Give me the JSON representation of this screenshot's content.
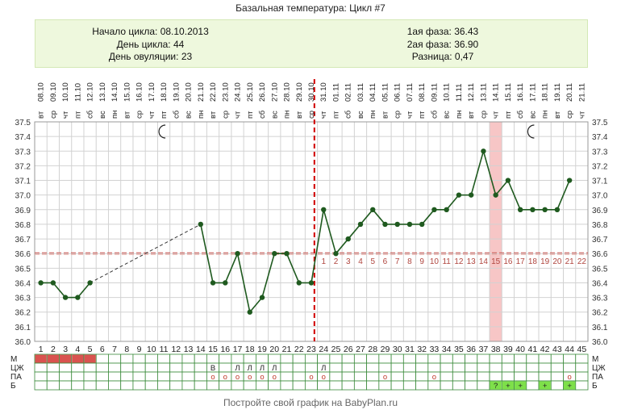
{
  "header": {
    "title": "Базальная температура: Цикл #7"
  },
  "info": {
    "cycle_start_label": "Начало цикла:",
    "cycle_start": "08.10.2013",
    "cycle_day_label": "День цикла:",
    "cycle_day": "44",
    "ovulation_day_label": "День овуляции:",
    "ovulation_day": "23",
    "phase1_label": "1ая фаза:",
    "phase1": "36.43",
    "phase2_label": "2ая фаза:",
    "phase2": "36.90",
    "diff_label": "Разница:",
    "diff": "0,47"
  },
  "footer": {
    "text": "Постройте свой график на BabyPlan.ru"
  },
  "chart_data": {
    "type": "line",
    "title": "Базальная температура: Цикл #7",
    "x": [
      1,
      2,
      3,
      4,
      5,
      6,
      7,
      8,
      9,
      10,
      11,
      12,
      13,
      14,
      15,
      16,
      17,
      18,
      19,
      20,
      21,
      22,
      23,
      24,
      25,
      26,
      27,
      28,
      29,
      30,
      31,
      32,
      33,
      34,
      35,
      36,
      37,
      38,
      39,
      40,
      41,
      42,
      43,
      44,
      45
    ],
    "dates": [
      "08.10",
      "09.10",
      "10.10",
      "11.10",
      "12.10",
      "13.10",
      "14.10",
      "15.10",
      "16.10",
      "17.10",
      "18.10",
      "19.10",
      "20.10",
      "21.10",
      "22.10",
      "23.10",
      "24.10",
      "25.10",
      "26.10",
      "27.10",
      "28.10",
      "29.10",
      "30.10",
      "31.10",
      "01.11",
      "02.11",
      "03.11",
      "04.11",
      "05.11",
      "06.11",
      "07.11",
      "08.11",
      "09.11",
      "10.11",
      "11.11",
      "12.11",
      "13.11",
      "14.11",
      "15.11",
      "16.11",
      "17.11",
      "18.11",
      "19.11",
      "20.11",
      "21.11"
    ],
    "weekdays": [
      "вт",
      "ср",
      "чт",
      "пт",
      "сб",
      "вс",
      "пн",
      "вт",
      "ср",
      "чт",
      "пт",
      "сб",
      "вс",
      "пн",
      "вт",
      "ср",
      "чт",
      "пт",
      "сб",
      "вс",
      "пн",
      "вт",
      "ср",
      "чт",
      "пт",
      "сб",
      "вс",
      "пн",
      "вт",
      "ср",
      "чт",
      "пт",
      "сб",
      "вс",
      "пн",
      "вт",
      "ср",
      "чт",
      "пт",
      "сб",
      "вс",
      "пн",
      "вт",
      "ср",
      "чт"
    ],
    "series": [
      {
        "values": [
          36.4,
          36.4,
          36.3,
          36.3,
          36.4,
          null,
          null,
          null,
          null,
          null,
          null,
          null,
          null,
          36.8,
          36.4,
          36.4,
          36.6,
          36.2,
          36.3,
          36.6,
          36.6,
          36.4,
          36.4,
          36.9,
          36.6,
          36.7,
          36.8,
          36.9,
          36.8,
          36.8,
          36.8,
          36.8,
          36.9,
          36.9,
          37.0,
          37.0,
          37.3,
          37.0,
          37.1,
          36.9,
          36.9,
          36.9,
          36.9,
          37.1,
          null
        ]
      }
    ],
    "ylim": [
      36.0,
      37.5
    ],
    "yticks": [
      "37.5",
      "37.4",
      "37.3",
      "37.2",
      "37.1",
      "37.0",
      "36.9",
      "36.8",
      "36.7",
      "36.6",
      "36.5",
      "36.4",
      "36.3",
      "36.2",
      "36.1",
      "36.0"
    ],
    "coverline": 36.6,
    "ovulation_after_day": 23,
    "luteal_day_labels": [
      "1",
      "2",
      "3",
      "4",
      "5",
      "6",
      "7",
      "8",
      "9",
      "10",
      "11",
      "12",
      "13",
      "14",
      "15",
      "16",
      "17",
      "18",
      "19",
      "20",
      "21",
      "22"
    ],
    "highlighted_day": 38,
    "moon_days": [
      11,
      41
    ],
    "grid": true,
    "rows": [
      {
        "label": "М",
        "cells": [
          {
            "day": 1,
            "fill": "#d9534f"
          },
          {
            "day": 2,
            "fill": "#d9534f"
          },
          {
            "day": 3,
            "fill": "#d9534f"
          },
          {
            "day": 4,
            "fill": "#d9534f"
          },
          {
            "day": 5,
            "fill": "#d9534f"
          }
        ]
      },
      {
        "label": "ЦЖ",
        "cells": [
          {
            "day": 15,
            "text": "В"
          },
          {
            "day": 17,
            "text": "Л"
          },
          {
            "day": 18,
            "text": "Л"
          },
          {
            "day": 19,
            "text": "Л"
          },
          {
            "day": 20,
            "text": "Л"
          },
          {
            "day": 24,
            "text": "Л"
          }
        ]
      },
      {
        "label": "ПА",
        "cells": [
          {
            "day": 15,
            "text": "о"
          },
          {
            "day": 16,
            "text": "о"
          },
          {
            "day": 17,
            "text": "о"
          },
          {
            "day": 18,
            "text": "о"
          },
          {
            "day": 19,
            "text": "о"
          },
          {
            "day": 20,
            "text": "о"
          },
          {
            "day": 23,
            "text": "о"
          },
          {
            "day": 24,
            "text": "о"
          },
          {
            "day": 29,
            "text": "о"
          },
          {
            "day": 33,
            "text": "о"
          },
          {
            "day": 44,
            "text": "о"
          }
        ]
      },
      {
        "label": "Б",
        "cells": [
          {
            "day": 38,
            "text": "?",
            "fill": "#7ee04a"
          },
          {
            "day": 39,
            "text": "+",
            "fill": "#7ee04a"
          },
          {
            "day": 40,
            "text": "+",
            "fill": "#7ee04a"
          },
          {
            "day": 42,
            "text": "+",
            "fill": "#7ee04a"
          },
          {
            "day": 44,
            "text": "+",
            "fill": "#7ee04a"
          }
        ]
      }
    ]
  }
}
